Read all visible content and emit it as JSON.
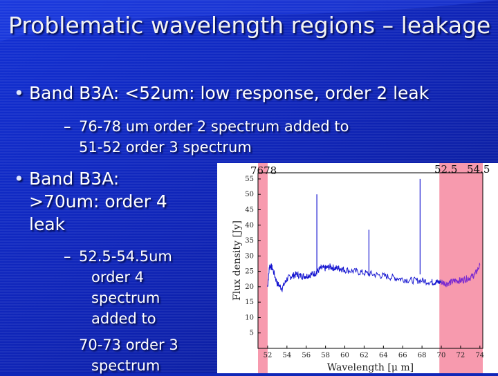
{
  "slide": {
    "title": "Problematic wavelength regions – leakage",
    "bullet1": "Band B3A: <52um: low response, order 2 leak",
    "sub1_line1": "76-78 um order 2 spectrum added to",
    "sub1_line2": "51-52 order 3 spectrum",
    "bullet2_line1": "Band B3A:",
    "bullet2_line2": ">70um: order 4",
    "bullet2_line3": "leak",
    "sub2": [
      "52.5-54.5um",
      "order 4",
      "spectrum",
      "added to"
    ],
    "sub3": [
      "70-73 order 3",
      "spectrum"
    ],
    "bullet_glyph": "•",
    "dash_glyph": "–"
  },
  "chart_data": {
    "type": "line",
    "xlabel": "Wavelength [μ m]",
    "ylabel": "Flux density [Jy]",
    "xlim": [
      51,
      74.3
    ],
    "ylim": [
      0,
      57
    ],
    "xticks": [
      52,
      54,
      56,
      58,
      60,
      62,
      64,
      66,
      68,
      70,
      72,
      74
    ],
    "yticks": [
      5,
      10,
      15,
      20,
      25,
      30,
      35,
      40,
      45,
      50,
      55
    ],
    "annotations": [
      "7678",
      "52.5",
      "54.5"
    ],
    "shaded_regions": [
      {
        "x": [
          51,
          52
        ],
        "color": "#f79aae"
      },
      {
        "x": [
          69.8,
          74.3
        ],
        "color": "#f79aae"
      }
    ],
    "series": [
      {
        "color": "#1515d0",
        "points": [
          [
            52.0,
            20
          ],
          [
            52.2,
            27
          ],
          [
            52.5,
            26
          ],
          [
            53.0,
            21
          ],
          [
            53.5,
            19.5
          ],
          [
            54.0,
            22.5
          ],
          [
            54.5,
            23.5
          ],
          [
            55.0,
            24
          ],
          [
            55.5,
            23.5
          ],
          [
            56.0,
            23.5
          ],
          [
            56.5,
            24
          ],
          [
            57.0,
            24.5
          ],
          [
            57.5,
            26
          ],
          [
            58.0,
            26
          ],
          [
            58.5,
            26.5
          ],
          [
            59.0,
            26
          ],
          [
            59.5,
            26
          ],
          [
            60.0,
            25.5
          ],
          [
            61.0,
            25
          ],
          [
            62.0,
            24.5
          ],
          [
            63.0,
            24
          ],
          [
            64.0,
            23.5
          ],
          [
            65.0,
            23
          ],
          [
            66.0,
            22.5
          ],
          [
            67.0,
            22
          ],
          [
            68.0,
            22
          ],
          [
            69.0,
            21.5
          ],
          [
            69.5,
            21.5
          ],
          [
            70.0,
            21.5
          ]
        ]
      },
      {
        "color": "#7a2ad0",
        "points": [
          [
            70.0,
            21.5
          ],
          [
            70.5,
            21
          ],
          [
            71.0,
            21.5
          ],
          [
            71.5,
            22
          ],
          [
            72.0,
            22
          ],
          [
            72.5,
            22.5
          ],
          [
            73.0,
            23
          ],
          [
            73.5,
            24
          ],
          [
            74.0,
            27
          ]
        ]
      }
    ],
    "spikes": [
      [
        57.1,
        50
      ],
      [
        62.5,
        38.5
      ],
      [
        67.8,
        55
      ]
    ]
  }
}
